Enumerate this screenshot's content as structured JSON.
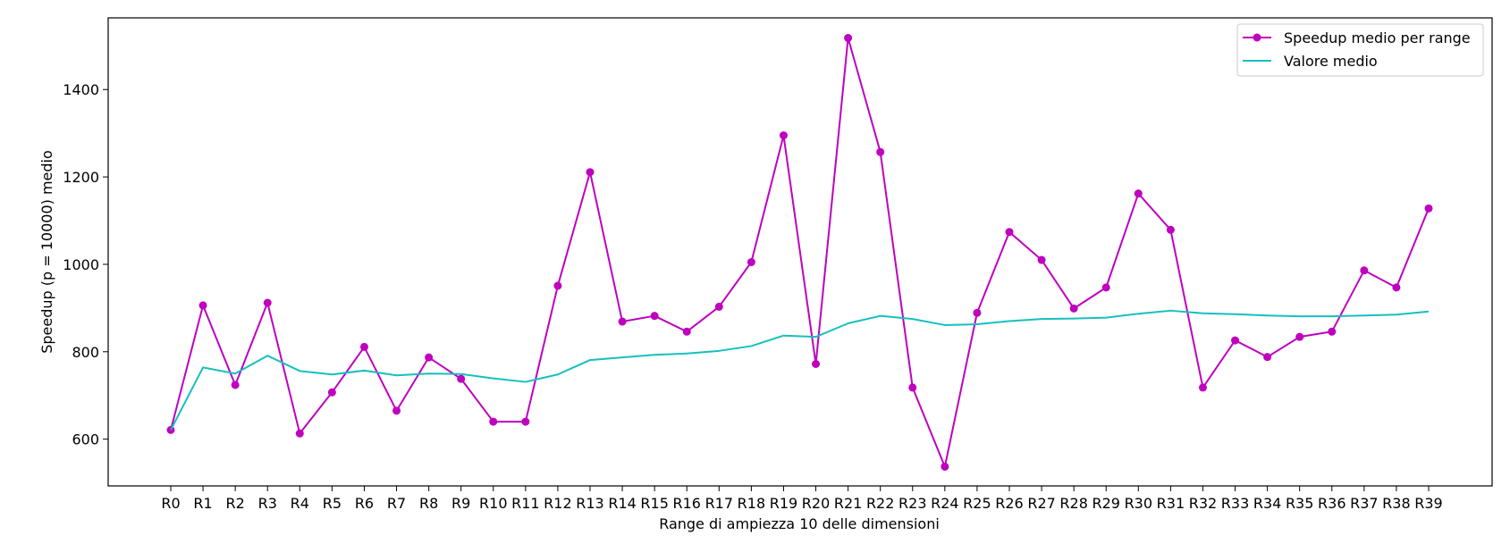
{
  "chart_data": {
    "type": "line",
    "categories": [
      "R0",
      "R1",
      "R2",
      "R3",
      "R4",
      "R5",
      "R6",
      "R7",
      "R8",
      "R9",
      "R10",
      "R11",
      "R12",
      "R13",
      "R14",
      "R15",
      "R16",
      "R17",
      "R18",
      "R19",
      "R20",
      "R21",
      "R22",
      "R23",
      "R24",
      "R25",
      "R26",
      "R27",
      "R28",
      "R29",
      "R30",
      "R31",
      "R32",
      "R33",
      "R34",
      "R35",
      "R36",
      "R37",
      "R38",
      "R39"
    ],
    "series": [
      {
        "name": "Speedup medio per range",
        "color": "#bf00bf",
        "marker": "circle",
        "values": [
          621,
          906,
          724,
          912,
          613,
          707,
          811,
          665,
          787,
          738,
          640,
          640,
          951,
          1211,
          869,
          882,
          846,
          903,
          1005,
          1295,
          772,
          1518,
          1257,
          718,
          537,
          889,
          1074,
          1010,
          899,
          947,
          1162,
          1079,
          718,
          826,
          788,
          834,
          846,
          986,
          947,
          1128
        ]
      },
      {
        "name": "Valore medio",
        "color": "#17bfbf",
        "marker": "none",
        "values": [
          621,
          764,
          750,
          791,
          756,
          748,
          757,
          746,
          750,
          749,
          739,
          731,
          748,
          781,
          787,
          793,
          796,
          802,
          813,
          837,
          834,
          865,
          882,
          875,
          861,
          863,
          870,
          875,
          876,
          878,
          887,
          894,
          888,
          886,
          883,
          881,
          881,
          883,
          885,
          892
        ]
      }
    ],
    "title": "",
    "xlabel": "Range di ampiezza 10 delle dimensioni",
    "ylabel": "Speedup (p = 10000) medio",
    "ylim": [
      493,
      1564
    ],
    "yticks": [
      600,
      800,
      1000,
      1200,
      1400
    ],
    "grid": false,
    "legend_position": "top-right"
  }
}
